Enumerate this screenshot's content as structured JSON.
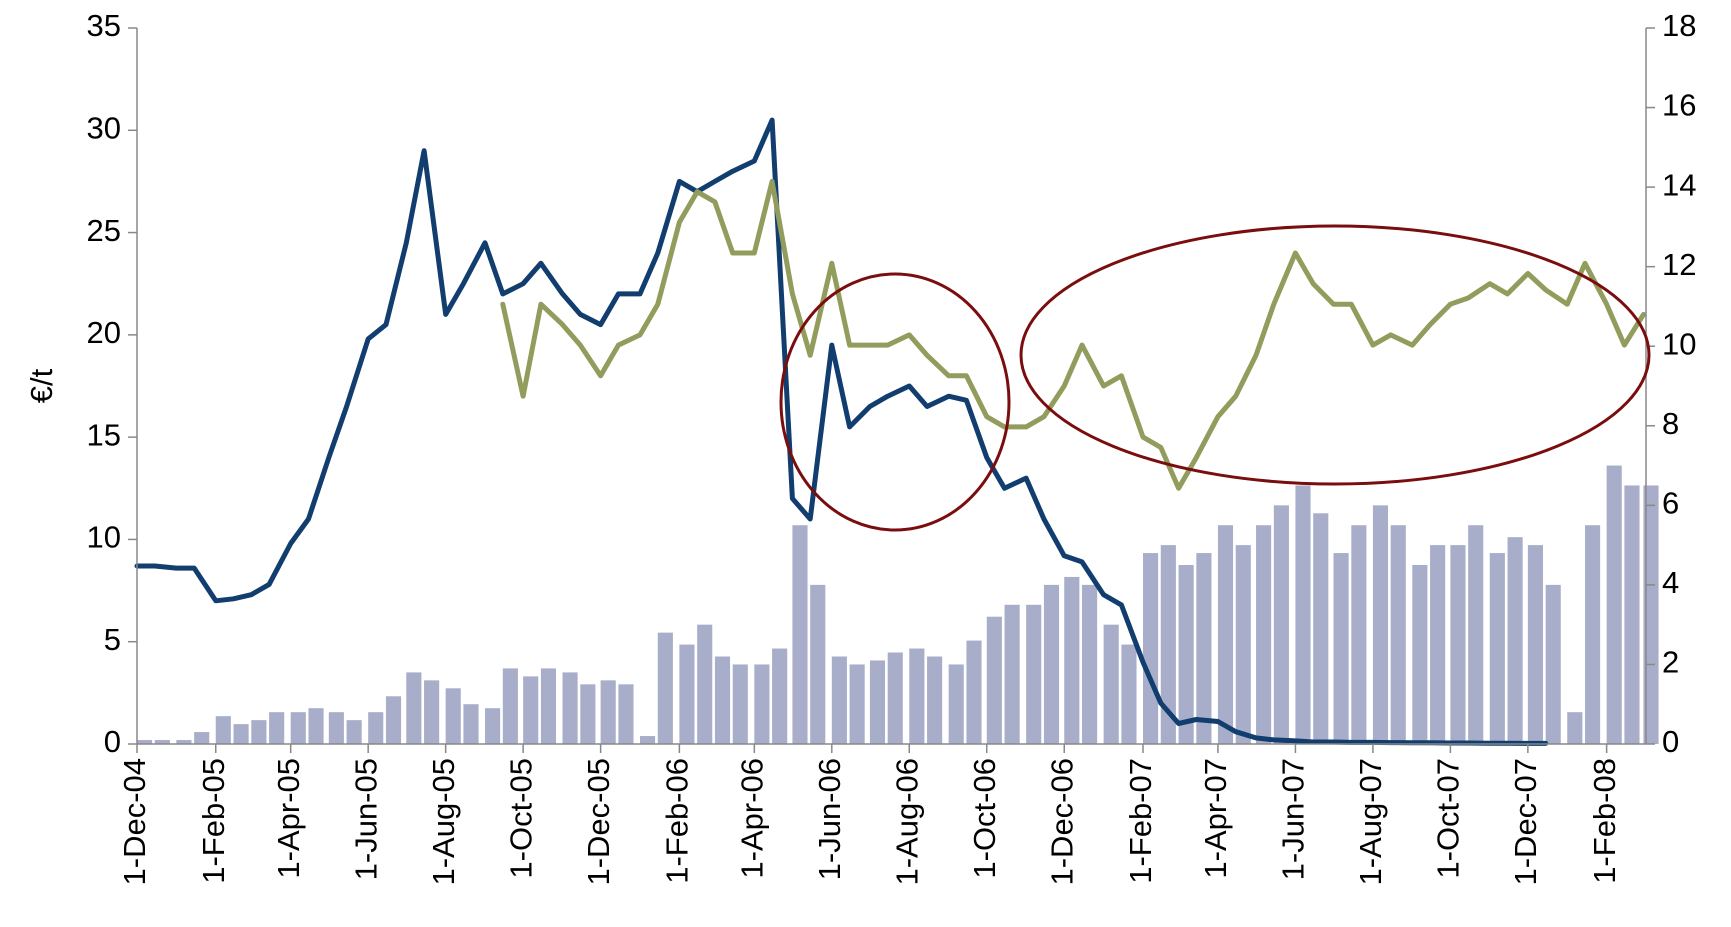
{
  "chart_data": {
    "type": "line",
    "y_label": "€/t",
    "x": [
      "2004-12-01",
      "2004-12-15",
      "2005-01-01",
      "2005-01-15",
      "2005-02-01",
      "2005-02-15",
      "2005-03-01",
      "2005-03-15",
      "2005-04-01",
      "2005-04-15",
      "2005-05-01",
      "2005-05-15",
      "2005-06-01",
      "2005-06-15",
      "2005-07-01",
      "2005-07-15",
      "2005-08-01",
      "2005-08-15",
      "2005-09-01",
      "2005-09-15",
      "2005-10-01",
      "2005-10-15",
      "2005-11-01",
      "2005-11-15",
      "2005-12-01",
      "2005-12-15",
      "2006-01-01",
      "2006-01-15",
      "2006-02-01",
      "2006-02-15",
      "2006-03-01",
      "2006-03-15",
      "2006-04-01",
      "2006-04-15",
      "2006-05-01",
      "2006-05-15",
      "2006-06-01",
      "2006-06-15",
      "2006-07-01",
      "2006-07-15",
      "2006-08-01",
      "2006-08-15",
      "2006-09-01",
      "2006-09-15",
      "2006-10-01",
      "2006-10-15",
      "2006-11-01",
      "2006-11-15",
      "2006-12-01",
      "2006-12-15",
      "2007-01-01",
      "2007-01-15",
      "2007-02-01",
      "2007-02-15",
      "2007-03-01",
      "2007-03-15",
      "2007-04-01",
      "2007-04-15",
      "2007-05-01",
      "2007-05-15",
      "2007-06-01",
      "2007-06-15",
      "2007-07-01",
      "2007-07-15",
      "2007-08-01",
      "2007-08-15",
      "2007-09-01",
      "2007-09-15",
      "2007-10-01",
      "2007-10-15",
      "2007-11-01",
      "2007-11-15",
      "2007-12-01",
      "2007-12-15",
      "2008-01-01",
      "2008-01-15",
      "2008-02-01",
      "2008-02-15",
      "2008-03-01"
    ],
    "series": [
      {
        "type": "bar",
        "axis": "y2",
        "color": "#a8adc9",
        "values": [
          0.1,
          0.1,
          0.1,
          0.3,
          0.7,
          0.5,
          0.6,
          0.8,
          0.8,
          0.9,
          0.8,
          0.6,
          0.8,
          1.2,
          1.8,
          1.6,
          1.4,
          1.0,
          0.9,
          1.9,
          1.7,
          1.9,
          1.8,
          1.5,
          1.6,
          1.5,
          0.2,
          2.8,
          2.5,
          3.0,
          2.2,
          2.0,
          2.0,
          2.4,
          5.5,
          4.0,
          2.2,
          2.0,
          2.1,
          2.3,
          2.4,
          2.2,
          2.0,
          2.6,
          3.2,
          3.5,
          3.5,
          4.0,
          4.2,
          4.0,
          3.0,
          2.5,
          4.8,
          5.0,
          4.5,
          4.8,
          5.5,
          5.0,
          5.5,
          6.0,
          6.5,
          5.8,
          4.8,
          5.5,
          6.0,
          5.5,
          4.5,
          5.0,
          5.0,
          5.5,
          4.8,
          5.2,
          5.0,
          4.0,
          0.8,
          5.5,
          7.0,
          6.5,
          6.5
        ]
      },
      {
        "type": "line",
        "color": "#113d6f",
        "values": [
          8.7,
          8.7,
          8.6,
          8.6,
          7.0,
          7.1,
          7.3,
          7.8,
          9.8,
          11,
          14,
          16.5,
          19.8,
          20.5,
          24.5,
          29,
          21,
          22.5,
          24.5,
          22,
          22.5,
          23.5,
          22,
          21,
          20.5,
          22,
          22,
          24,
          27.5,
          27,
          27.5,
          28,
          28.5,
          30.5,
          12,
          11,
          19.5,
          15.5,
          16.5,
          17,
          17.5,
          16.5,
          17,
          16.8,
          14,
          12.5,
          13,
          11,
          9.2,
          8.9,
          7.3,
          6.8,
          4,
          2,
          1,
          1.2,
          1.1,
          0.6,
          0.3,
          0.2,
          0.15,
          0.1,
          0.1,
          0.08,
          0.08,
          0.07,
          0.06,
          0.06,
          0.05,
          0.05,
          0.04,
          0.04,
          0.03,
          0.03,
          null,
          null,
          null,
          null,
          null
        ]
      },
      {
        "type": "line",
        "color": "#929c5c",
        "values": [
          null,
          null,
          null,
          null,
          null,
          null,
          null,
          null,
          null,
          null,
          null,
          null,
          null,
          null,
          null,
          null,
          null,
          null,
          null,
          21.5,
          17,
          21.5,
          20.5,
          19.5,
          18,
          19.5,
          20,
          21.5,
          25.5,
          27,
          26.5,
          24,
          24,
          27.5,
          22,
          19,
          23.5,
          19.5,
          19.5,
          19.5,
          20,
          19,
          18,
          18,
          16,
          15.5,
          15.5,
          16,
          17.5,
          19.5,
          17.5,
          18,
          15,
          14.5,
          12.5,
          14,
          16,
          17,
          19,
          21.5,
          24,
          22.5,
          21.5,
          21.5,
          19.5,
          20,
          19.5,
          20.5,
          21.5,
          21.8,
          22.5,
          22,
          23,
          22.2,
          21.5,
          23.5,
          21.5,
          19.5,
          21
        ]
      }
    ],
    "xlim": [
      "2004-12-01",
      "2008-03-03"
    ],
    "xticks": [
      {
        "value": "2004-12-01",
        "label": "1-Dec-04"
      },
      {
        "value": "2005-02-01",
        "label": "1-Feb-05"
      },
      {
        "value": "2005-04-01",
        "label": "1-Apr-05"
      },
      {
        "value": "2005-06-01",
        "label": "1-Jun-05"
      },
      {
        "value": "2005-08-01",
        "label": "1-Aug-05"
      },
      {
        "value": "2005-10-01",
        "label": "1-Oct-05"
      },
      {
        "value": "2005-12-01",
        "label": "1-Dec-05"
      },
      {
        "value": "2006-02-01",
        "label": "1-Feb-06"
      },
      {
        "value": "2006-04-01",
        "label": "1-Apr-06"
      },
      {
        "value": "2006-06-01",
        "label": "1-Jun-06"
      },
      {
        "value": "2006-08-01",
        "label": "1-Aug-06"
      },
      {
        "value": "2006-10-01",
        "label": "1-Oct-06"
      },
      {
        "value": "2006-12-01",
        "label": "1-Dec-06"
      },
      {
        "value": "2007-02-01",
        "label": "1-Feb-07"
      },
      {
        "value": "2007-04-01",
        "label": "1-Apr-07"
      },
      {
        "value": "2007-06-01",
        "label": "1-Jun-07"
      },
      {
        "value": "2007-08-01",
        "label": "1-Aug-07"
      },
      {
        "value": "2007-10-01",
        "label": "1-Oct-07"
      },
      {
        "value": "2007-12-01",
        "label": "1-Dec-07"
      },
      {
        "value": "2008-02-01",
        "label": "1-Feb-08"
      }
    ],
    "ylim": [
      0,
      35
    ],
    "yticks": [
      0,
      5,
      10,
      15,
      20,
      25,
      30,
      35
    ],
    "y2lim": [
      0,
      18
    ],
    "y2ticks": [
      0,
      2,
      4,
      6,
      8,
      10,
      12,
      14,
      16,
      18
    ],
    "grid": false
  }
}
